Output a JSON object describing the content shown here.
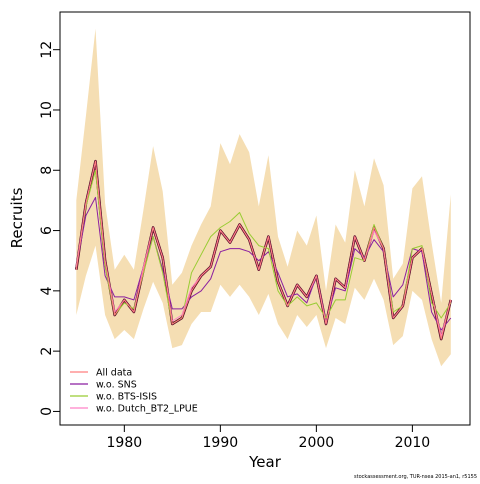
{
  "chart_data": {
    "type": "line",
    "xlabel": "Year",
    "ylabel": "Recruits",
    "xlim": [
      1973.3,
      2016.0
    ],
    "ylim": [
      -0.45,
      13.25
    ],
    "x_ticks": [
      1980,
      1990,
      2000,
      2010
    ],
    "y_ticks": [
      0,
      2,
      4,
      6,
      8,
      10,
      12
    ],
    "legend_position": "bottom-left",
    "footnote": "stockassessment.org, TUR-nsea 2015-an1, r5155",
    "colors": {
      "band": "#f5deb3",
      "main": "#5a0a2a",
      "all_data": "#ff7f7f",
      "sns": "#8b1fa0",
      "bts": "#99cc33",
      "dutch": "#ff82c8"
    },
    "x": [
      1975,
      1976,
      1977,
      1978,
      1979,
      1980,
      1981,
      1982,
      1983,
      1984,
      1985,
      1986,
      1987,
      1988,
      1989,
      1990,
      1991,
      1992,
      1993,
      1994,
      1995,
      1996,
      1997,
      1998,
      1999,
      2000,
      2001,
      2002,
      2003,
      2004,
      2005,
      2006,
      2007,
      2008,
      2009,
      2010,
      2011,
      2012,
      2013,
      2014
    ],
    "band_lower": [
      3.2,
      4.5,
      5.5,
      3.2,
      2.4,
      2.7,
      2.4,
      3.4,
      4.3,
      3.6,
      2.1,
      2.2,
      2.9,
      3.3,
      3.3,
      4.2,
      3.8,
      4.2,
      3.8,
      3.2,
      3.9,
      2.9,
      2.4,
      3.2,
      2.8,
      3.2,
      2.1,
      3.1,
      2.9,
      4.1,
      3.7,
      4.4,
      3.7,
      2.2,
      2.5,
      4.0,
      3.7,
      2.4,
      1.5,
      1.9
    ],
    "band_upper": [
      7.0,
      9.8,
      12.7,
      6.9,
      4.7,
      5.2,
      4.7,
      6.7,
      8.8,
      7.3,
      4.2,
      4.6,
      5.5,
      6.2,
      6.8,
      8.9,
      8.2,
      9.2,
      8.6,
      6.8,
      8.5,
      5.8,
      4.8,
      6.0,
      5.5,
      6.5,
      4.0,
      6.2,
      5.6,
      8.0,
      6.8,
      8.4,
      7.5,
      4.4,
      4.9,
      7.4,
      7.8,
      5.6,
      3.6,
      7.2
    ],
    "series": [
      {
        "name": "All data",
        "values": [
          4.7,
          6.9,
          8.3,
          5.0,
          3.2,
          3.7,
          3.3,
          4.7,
          6.1,
          5.1,
          2.9,
          3.1,
          4.0,
          4.5,
          4.8,
          6.0,
          5.6,
          6.2,
          5.7,
          4.7,
          5.8,
          4.3,
          3.5,
          4.2,
          3.8,
          4.5,
          2.9,
          4.4,
          4.1,
          5.8,
          5.0,
          6.1,
          5.4,
          3.1,
          3.5,
          5.1,
          5.4,
          3.9,
          2.4,
          3.7
        ]
      },
      {
        "name": "w.o. SNS",
        "values": [
          4.8,
          6.5,
          7.1,
          4.5,
          3.8,
          3.8,
          3.7,
          4.8,
          5.8,
          4.7,
          3.4,
          3.4,
          3.8,
          4.0,
          4.4,
          5.3,
          5.4,
          5.4,
          5.3,
          5.0,
          5.3,
          4.6,
          3.8,
          3.9,
          3.6,
          4.5,
          3.0,
          4.1,
          4.0,
          5.4,
          5.1,
          5.7,
          5.3,
          3.8,
          4.2,
          5.4,
          5.3,
          3.3,
          2.7,
          3.1
        ]
      },
      {
        "name": "w.o. BTS-ISIS",
        "values": [
          4.8,
          6.8,
          8.0,
          4.8,
          3.2,
          3.6,
          3.4,
          4.6,
          5.8,
          4.6,
          2.9,
          3.1,
          4.6,
          5.2,
          5.8,
          6.1,
          6.3,
          6.6,
          5.9,
          5.5,
          5.4,
          4.0,
          3.5,
          3.8,
          3.5,
          3.6,
          3.1,
          3.7,
          3.7,
          5.1,
          5.0,
          6.2,
          5.4,
          3.3,
          3.5,
          5.4,
          5.5,
          3.6,
          3.1,
          3.6
        ]
      },
      {
        "name": "w.o. Dutch_BT2_LPUE",
        "values": [
          4.8,
          6.9,
          8.3,
          5.0,
          3.3,
          3.7,
          3.3,
          4.8,
          6.1,
          5.1,
          3.0,
          3.2,
          4.1,
          4.5,
          4.8,
          6.0,
          5.6,
          6.2,
          5.7,
          4.7,
          5.8,
          4.3,
          3.5,
          4.2,
          3.8,
          4.5,
          2.9,
          4.4,
          4.1,
          5.8,
          5.0,
          6.0,
          5.4,
          3.1,
          3.5,
          5.1,
          5.4,
          3.9,
          2.5,
          3.7
        ]
      }
    ]
  }
}
